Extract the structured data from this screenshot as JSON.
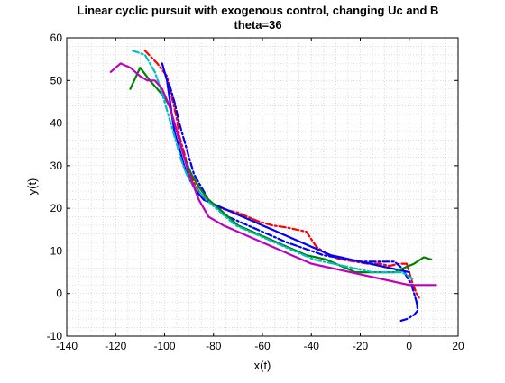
{
  "chart_data": {
    "type": "line",
    "title": "Linear cyclic pursuit with exogenous control, changing Uc and B",
    "subtitle": "theta=36",
    "xlabel": "x(t)",
    "ylabel": "y(t)",
    "xlim": [
      -140,
      20
    ],
    "ylim": [
      -10,
      60
    ],
    "xticks": [
      -140,
      -120,
      -100,
      -80,
      -60,
      -40,
      -20,
      0,
      20
    ],
    "yticks": [
      -10,
      0,
      10,
      20,
      30,
      40,
      50,
      60
    ],
    "grid": "dotted-minor",
    "series": [
      {
        "color": "#ff0000",
        "dash": "dashdot",
        "x": [
          -108,
          -103,
          -99,
          -97,
          -95,
          -94,
          -92,
          -90,
          -88,
          -86,
          -83,
          -80,
          -77,
          -74,
          -70,
          -66,
          -62,
          -56,
          -50,
          -46,
          -42,
          -38,
          -33,
          -28,
          -22,
          -17,
          -12,
          -8,
          -4,
          -1,
          1,
          3,
          4
        ],
        "y": [
          57,
          54,
          51,
          46,
          41,
          37,
          33,
          29,
          26,
          24,
          22,
          21,
          20,
          19.5,
          19,
          18,
          17,
          16,
          15.5,
          15,
          14.5,
          11,
          9,
          8,
          7.5,
          7,
          7,
          6.5,
          7,
          7,
          3,
          0,
          -1
        ]
      },
      {
        "color": "#0000ff",
        "dash": "solid",
        "x": [
          -101,
          -99,
          -98,
          -97,
          -96,
          -94,
          -92,
          -90,
          -87,
          -84,
          -80,
          -76,
          -72,
          -68,
          -64,
          -60,
          -56,
          -52,
          -48,
          -44,
          -40,
          -36,
          -32,
          -28,
          -24,
          -20,
          -16,
          -12,
          -8,
          -4,
          0
        ],
        "y": [
          54,
          50,
          46,
          42,
          38,
          34,
          30,
          27,
          24,
          22,
          21,
          20,
          19,
          18,
          17,
          16,
          15,
          14,
          13,
          12,
          11,
          10,
          9,
          8.5,
          8,
          7.5,
          7,
          6.5,
          6,
          5.5,
          5
        ]
      },
      {
        "color": "#0000ff",
        "dash": "dashdot",
        "x": [
          -98,
          -96,
          -94,
          -92,
          -90,
          -88,
          -85,
          -82,
          -78,
          -74,
          -70,
          -66,
          -62,
          -58,
          -54,
          -50,
          -45,
          -40,
          -35,
          -30,
          -25,
          -20,
          -15,
          -10,
          -6,
          -3,
          -1,
          1,
          2,
          3,
          3.5,
          2,
          -1,
          -4
        ],
        "y": [
          49,
          45,
          40,
          36,
          32,
          28,
          25,
          22,
          20,
          18,
          17,
          16,
          15,
          14,
          13,
          12,
          11,
          10,
          9,
          8.5,
          8,
          7.5,
          7.5,
          7.5,
          7.5,
          6,
          4,
          2,
          0,
          -2,
          -4,
          -5,
          -6,
          -6.5
        ]
      },
      {
        "color": "#008000",
        "dash": "solid",
        "x": [
          -114,
          -110,
          -106,
          -103,
          -100,
          -98,
          -96,
          -94,
          -92,
          -89,
          -86,
          -82,
          -78,
          -74,
          -70,
          -66,
          -62,
          -58,
          -54,
          -50,
          -46,
          -42,
          -38,
          -34,
          -30,
          -26,
          -22,
          -18,
          -14,
          -10,
          -6,
          -2,
          2,
          6,
          9
        ],
        "y": [
          48,
          53,
          50,
          48,
          46,
          44,
          40,
          36,
          32,
          28,
          25,
          22,
          20,
          18,
          16,
          15,
          14,
          13,
          12,
          11,
          10,
          9,
          8.5,
          8,
          7,
          6,
          5,
          5,
          5,
          5,
          5,
          6,
          7,
          8.5,
          8
        ]
      },
      {
        "color": "#00bfbf",
        "dash": "dashdot",
        "x": [
          -113,
          -108,
          -104,
          -101,
          -99,
          -97,
          -95,
          -93,
          -91,
          -89,
          -86,
          -83,
          -79,
          -75,
          -71,
          -67,
          -63,
          -59,
          -55,
          -51,
          -47,
          -43,
          -39,
          -35,
          -31,
          -27,
          -23,
          -19,
          -15,
          -11,
          -7,
          -3,
          0,
          2
        ],
        "y": [
          57,
          56,
          52,
          47,
          43,
          39,
          35,
          31,
          28,
          26,
          24,
          22,
          20,
          18,
          16,
          15,
          14,
          13,
          12,
          11,
          10,
          9,
          8,
          7.5,
          7,
          6.5,
          6,
          5.5,
          5,
          5,
          5,
          5,
          4,
          3
        ]
      },
      {
        "color": "#c000c0",
        "dash": "solid",
        "x": [
          -122,
          -118,
          -114,
          -110,
          -107,
          -104,
          -101,
          -98,
          -96,
          -94,
          -92,
          -90,
          -88,
          -86,
          -84,
          -82,
          -79,
          -76,
          -72,
          -68,
          -64,
          -60,
          -56,
          -52,
          -48,
          -44,
          -40,
          -36,
          -32,
          -28,
          -24,
          -20,
          -16,
          -12,
          -8,
          -4,
          0,
          4,
          8,
          11
        ],
        "y": [
          52,
          54,
          53,
          51,
          50,
          50,
          48,
          44,
          40,
          36,
          32,
          28,
          25,
          22,
          20,
          18,
          17,
          16,
          15,
          14,
          13,
          12,
          11,
          10,
          9,
          8,
          7,
          6.5,
          6,
          5.5,
          5,
          4.5,
          4,
          3.5,
          3,
          2.5,
          2,
          2,
          2,
          2
        ]
      }
    ]
  }
}
